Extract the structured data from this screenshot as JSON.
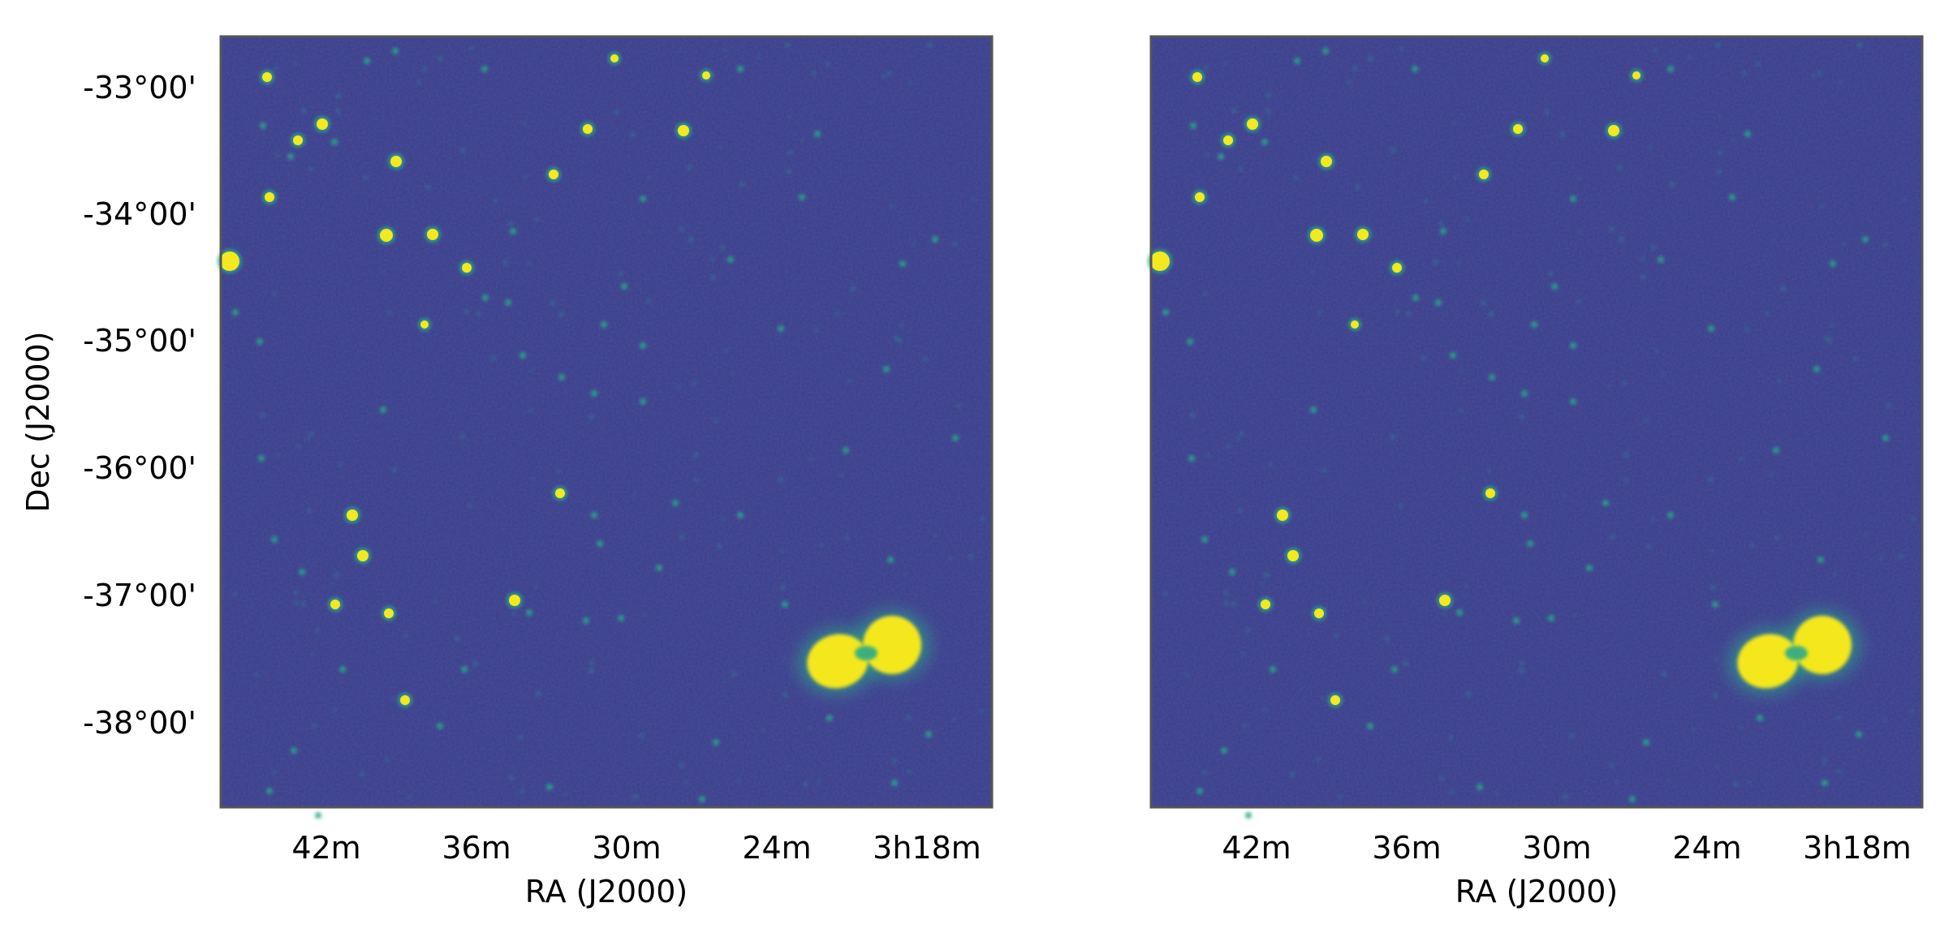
{
  "figure": {
    "panels": [
      {
        "id": "left",
        "xlabel": "RA (J2000)",
        "ylabel": "Dec (J2000)",
        "x_ticks": [
          "42m",
          "36m",
          "30m",
          "24m",
          "3h18m"
        ],
        "y_ticks": [
          "-33°00'",
          "-34°00'",
          "-35°00'",
          "-36°00'",
          "-37°00'",
          "-38°00'"
        ]
      },
      {
        "id": "right",
        "xlabel": "RA (J2000)",
        "ylabel": "",
        "x_ticks": [
          "42m",
          "36m",
          "30m",
          "24m",
          "3h18m"
        ],
        "y_ticks": []
      }
    ],
    "colors": {
      "background": "#3b3f8c",
      "source_bright": "#f4e81e",
      "source_mid": "#2aa88a",
      "source_faint": "#2f7f8e",
      "frame": "#555555"
    },
    "image_type": "radio sky map, viridis colormap"
  }
}
